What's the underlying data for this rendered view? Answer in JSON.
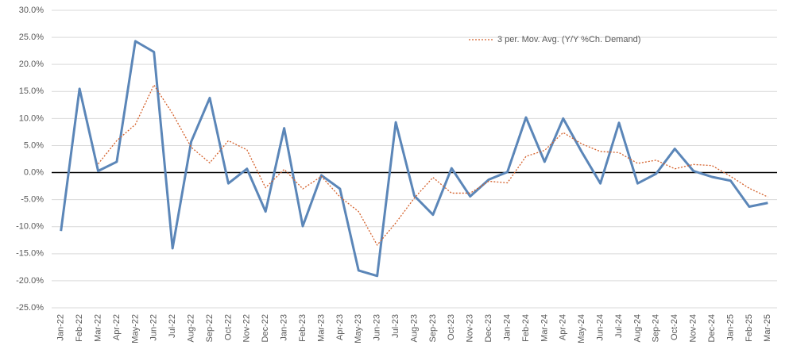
{
  "chart_data": {
    "type": "line",
    "categories": [
      "Jan-22",
      "Feb-22",
      "Mar-22",
      "Apr-22",
      "May-22",
      "Jun-22",
      "Jul-22",
      "Aug-22",
      "Sep-22",
      "Oct-22",
      "Nov-22",
      "Dec-22",
      "Jan-23",
      "Feb-23",
      "Mar-23",
      "Apr-23",
      "May-23",
      "Jun-23",
      "Jul-23",
      "Aug-23",
      "Sep-23",
      "Oct-23",
      "Nov-23",
      "Dec-23",
      "Jan-24",
      "Feb-24",
      "Mar-24",
      "Apr-24",
      "May-24",
      "Jun-24",
      "Jul-24",
      "Aug-24",
      "Sep-24",
      "Oct-24",
      "Nov-24",
      "Dec-24",
      "Jan-25",
      "Feb-25",
      "Mar-25"
    ],
    "series": [
      {
        "color": "#5b86b8",
        "style": "solid",
        "values": [
          -10.8,
          15.5,
          0.3,
          2.0,
          24.3,
          22.3,
          -14.0,
          5.7,
          13.8,
          -2.0,
          0.7,
          -7.2,
          8.2,
          -9.9,
          -0.5,
          -3.0,
          -18.1,
          -19.1,
          9.3,
          -4.3,
          -7.8,
          0.8,
          -4.4,
          -1.3,
          0.1,
          10.2,
          2.0,
          10.0,
          3.8,
          -2.0,
          9.2,
          -2.0,
          -0.2,
          4.4,
          0.3,
          -0.8,
          -1.5,
          -6.3,
          -5.6
        ]
      },
      {
        "name": "3 per. Mov. Avg. (Y/Y %Ch. Demand)",
        "color": "#d4602a",
        "style": "dotted",
        "values": [
          null,
          null,
          1.6,
          5.9,
          8.9,
          16.2,
          10.9,
          4.7,
          1.8,
          5.9,
          4.2,
          -2.8,
          0.6,
          -3.0,
          -0.7,
          -4.5,
          -7.2,
          -13.4,
          -9.3,
          -4.7,
          -0.9,
          -3.8,
          -3.8,
          -1.6,
          -1.9,
          3.0,
          4.1,
          7.4,
          5.3,
          3.9,
          3.7,
          1.7,
          2.3,
          0.7,
          1.5,
          1.3,
          -0.7,
          -2.9,
          -4.5
        ]
      }
    ],
    "ylim": [
      -25,
      30
    ],
    "yticks": [
      {
        "value": -25,
        "label": "-25.0%"
      },
      {
        "value": -20,
        "label": "-20.0%"
      },
      {
        "value": -15,
        "label": "-15.0%"
      },
      {
        "value": -10,
        "label": "-10.0%"
      },
      {
        "value": -5,
        "label": "-5.0%"
      },
      {
        "value": 0,
        "label": "0.0%"
      },
      {
        "value": 5,
        "label": "5.0%"
      },
      {
        "value": 10,
        "label": "10.0%"
      },
      {
        "value": 15,
        "label": "15.0%"
      },
      {
        "value": 20,
        "label": "20.0%"
      },
      {
        "value": 25,
        "label": "25.0%"
      },
      {
        "value": 30,
        "label": "30.0%"
      }
    ],
    "grid": true,
    "legend": "top-right"
  }
}
